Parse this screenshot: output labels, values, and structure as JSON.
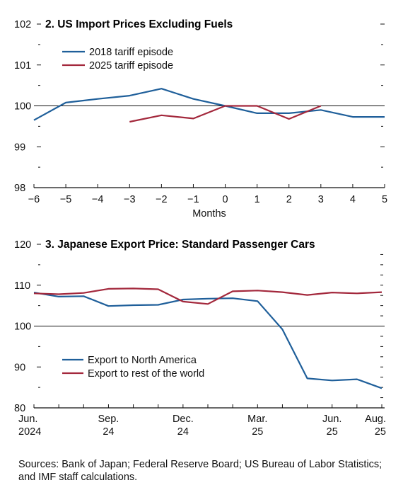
{
  "chart_data": [
    {
      "type": "line",
      "title": "2. US Import Prices Excluding Fuels",
      "xlabel": "Months",
      "ylabel": "",
      "ylim": [
        98,
        102
      ],
      "xlim": [
        -6,
        5
      ],
      "yticks": [
        98,
        99,
        100,
        101,
        102
      ],
      "xticks": [
        -6,
        -5,
        -4,
        -3,
        -2,
        -1,
        0,
        1,
        2,
        3,
        4,
        5
      ],
      "xtick_labels": [
        "−6",
        "−5",
        "−4",
        "−3",
        "−2",
        "−1",
        "0",
        "1",
        "2",
        "3",
        "4",
        "5"
      ],
      "reference_line": 100,
      "legend": "top-left",
      "series": [
        {
          "name": "2018 tariff episode",
          "color": "#1f5f9a",
          "x": [
            -6,
            -5,
            -4,
            -3,
            -2,
            -1,
            0,
            1,
            2,
            3,
            4,
            5
          ],
          "values": [
            99.65,
            100.08,
            100.17,
            100.25,
            100.42,
            100.17,
            100.0,
            99.82,
            99.82,
            99.9,
            99.73,
            99.73
          ]
        },
        {
          "name": "2025 tariff episode",
          "color": "#a3283c",
          "x": [
            -3,
            -2,
            -1,
            0,
            1,
            2,
            3
          ],
          "values": [
            99.61,
            99.77,
            99.69,
            100.0,
            100.0,
            99.68,
            100.0
          ]
        }
      ]
    },
    {
      "type": "line",
      "title": "3. Japanese Export Price: Standard Passenger Cars",
      "xlabel": "",
      "ylabel": "",
      "ylim": [
        80,
        120
      ],
      "yticks": [
        80,
        90,
        100,
        110,
        120
      ],
      "categories": [
        "Jun. 2024",
        "Jul. 2024",
        "Aug. 2024",
        "Sep. 2024",
        "Oct. 2024",
        "Nov. 2024",
        "Dec. 2024",
        "Jan. 2025",
        "Feb. 2025",
        "Mar. 2025",
        "Apr. 2025",
        "May 2025",
        "Jun. 2025",
        "Jul. 2025",
        "Aug. 2025"
      ],
      "xtick_labels": [
        {
          "index": 0,
          "line1": "Jun.",
          "line2": "2024"
        },
        {
          "index": 3,
          "line1": "Sep.",
          "line2": "24"
        },
        {
          "index": 6,
          "line1": "Dec.",
          "line2": "24"
        },
        {
          "index": 9,
          "line1": "Mar.",
          "line2": "25"
        },
        {
          "index": 12,
          "line1": "Jun.",
          "line2": "25"
        },
        {
          "index": 14,
          "line1": "Aug.",
          "line2": "25"
        }
      ],
      "reference_line": 100,
      "legend": "bottom-left",
      "series": [
        {
          "name": "Export to North America",
          "color": "#1f5f9a",
          "values": [
            108.2,
            107.2,
            107.3,
            104.9,
            105.1,
            105.2,
            106.5,
            106.7,
            106.8,
            106.1,
            99.2,
            87.2,
            86.7,
            87.0,
            84.8
          ]
        },
        {
          "name": "Export to rest of the world",
          "color": "#a3283c",
          "values": [
            108.0,
            107.8,
            108.1,
            109.1,
            109.2,
            109.0,
            106.0,
            105.4,
            108.5,
            108.7,
            108.3,
            107.6,
            108.2,
            108.0,
            108.3
          ]
        }
      ]
    }
  ],
  "source_text": "Sources: Bank of Japan; Federal Reserve Board; US Bureau of Labor Statistics; and IMF staff calculations."
}
